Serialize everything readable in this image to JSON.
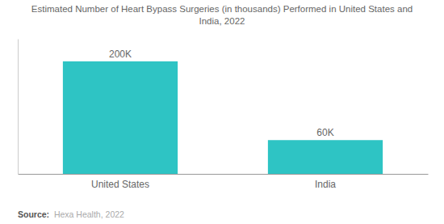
{
  "chart_data": {
    "type": "bar",
    "title": "Estimated Number of Heart Bypass Surgeries (in thousands) Performed in United States and\nIndia, 2022",
    "categories": [
      "United States",
      "India"
    ],
    "values": [
      200,
      60
    ],
    "value_labels": [
      "200K",
      "60K"
    ],
    "data_labels": true,
    "color": "#2EC4C4",
    "ylim": [
      0,
      240
    ],
    "tick_labels": "x",
    "grid": false,
    "annotations": [
      "Source:",
      "  Hexa Health, 2022"
    ]
  }
}
